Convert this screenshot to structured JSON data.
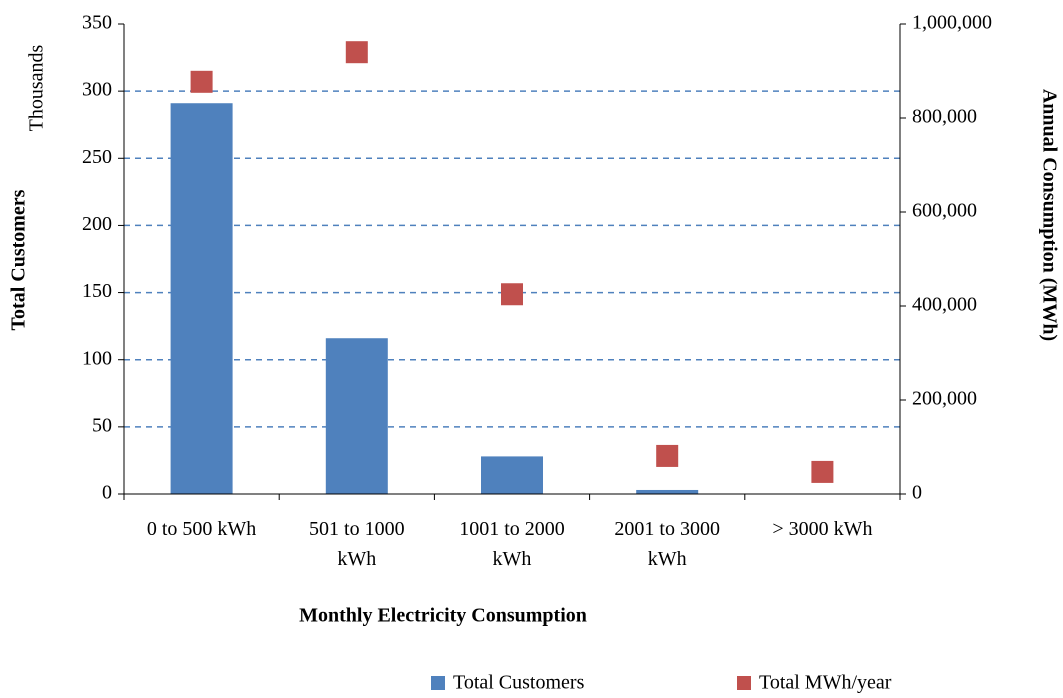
{
  "chart_data": {
    "type": "bar",
    "categories": [
      "0 to 500 kWh",
      "501 to 1000 kWh",
      "1001 to 2000 kWh",
      "2001 to 3000 kWh",
      "> 3000 kWh"
    ],
    "series": [
      {
        "name": "Total Customers",
        "color": "#4f81bd",
        "type": "bar",
        "values": [
          291,
          116,
          28,
          3,
          0.2
        ]
      },
      {
        "name": "Total MWh/year",
        "color": "#c0504d",
        "type": "scatter",
        "axis": "y2",
        "values": [
          877000,
          940000,
          425000,
          81000,
          47000
        ]
      }
    ],
    "ylabel": "Total Customers",
    "yunit": "Thousands",
    "y2label": "Annual Consumption (MWh)",
    "xlabel": "Monthly Electricity Consumption",
    "ylim": [
      0,
      350
    ],
    "yticks": [
      0,
      50,
      100,
      150,
      200,
      250,
      300,
      350
    ],
    "y2lim": [
      0,
      1000000
    ],
    "y2ticks": [
      0,
      {
        "value": 200000,
        "label": "200,000"
      },
      {
        "value": 400000,
        "label": "400,000"
      },
      {
        "value": 600000,
        "label": "600,000"
      },
      {
        "value": 800000,
        "label": "800,000"
      },
      {
        "value": 1000000,
        "label": "1,000,000"
      }
    ],
    "grid": true,
    "legend": "bottom"
  }
}
